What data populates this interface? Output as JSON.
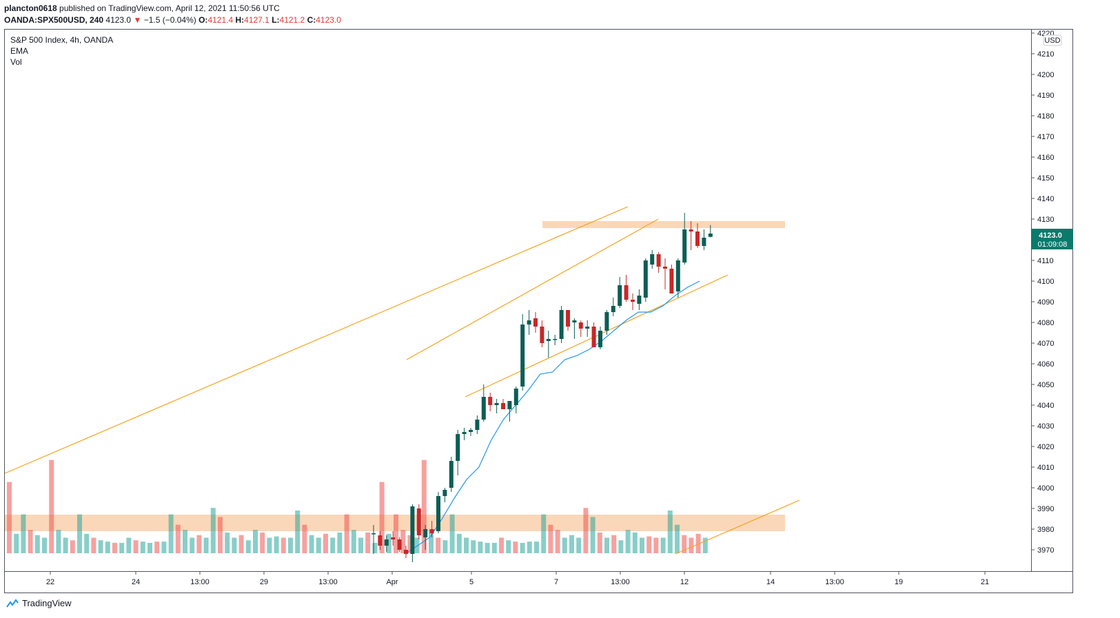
{
  "header": {
    "author": "plancton0618",
    "published_text": "published on TradingView.com, April 12, 2021 11:50:56 UTC",
    "symbol": "OANDA:SPX500USD, 240",
    "last": "4123.0",
    "change_arrow": "▼",
    "change": "−1.5 (−0.04%)",
    "o_label": "O:",
    "o_value": "4121.4",
    "h_label": "H:",
    "h_value": "4127.1",
    "l_label": "L:",
    "l_value": "4121.2",
    "c_label": "C:",
    "c_value": "4123.0"
  },
  "legend": {
    "title": "S&P 500 Index, 4h, OANDA",
    "ema": "EMA",
    "vol": "Vol"
  },
  "price_axis": {
    "currency": "USD",
    "ticks": [
      "4220",
      "4210",
      "4200",
      "4190",
      "4180",
      "4170",
      "4160",
      "4150",
      "4140",
      "4130",
      "4120",
      "4110",
      "4100",
      "4090",
      "4080",
      "4070",
      "4060",
      "4050",
      "4040",
      "4030",
      "4020",
      "4010",
      "4000",
      "3990",
      "3980",
      "3970"
    ],
    "last_price": "4123.0",
    "countdown": "01:09:08"
  },
  "time_axis": {
    "labels": [
      "22",
      "24",
      "13:00",
      "29",
      "13:00",
      "Apr",
      "5",
      "7",
      "13:00",
      "12",
      "14",
      "13:00",
      "19",
      "21"
    ]
  },
  "footer": {
    "brand": "TradingView"
  },
  "colors": {
    "up": "#26a69a",
    "down": "#ef5350",
    "candle_up": "#0b5e55",
    "candle_down": "#c62828",
    "ema": "#2196f3",
    "channel": "#f7a21b",
    "zone": "#f8c9a0",
    "badge": "#0b7a6c"
  },
  "chart_data": {
    "type": "candlestick",
    "symbol": "OANDA:SPX500USD",
    "timeframe": "4h",
    "ylim": [
      3968,
      4222
    ],
    "candles": [
      [
        3978,
        3982,
        3968,
        3978
      ],
      [
        3977,
        3979,
        3970,
        3972
      ],
      [
        3972,
        3977,
        3969,
        3975
      ],
      [
        3976,
        3979,
        3972,
        3975
      ],
      [
        3975,
        3976,
        3969,
        3970
      ],
      [
        3970,
        3972,
        3966,
        3968
      ],
      [
        3968,
        3992,
        3964,
        3991
      ],
      [
        3990,
        3992,
        3975,
        3977
      ],
      [
        3976,
        3982,
        3970,
        3980
      ],
      [
        3980,
        3984,
        3976,
        3978
      ],
      [
        3979,
        3998,
        3978,
        3996
      ],
      [
        3996,
        4000,
        3993,
        3999
      ],
      [
        4000,
        4015,
        3998,
        4013
      ],
      [
        4013,
        4028,
        4006,
        4026
      ],
      [
        4026,
        4029,
        4023,
        4027
      ],
      [
        4027,
        4029,
        4025,
        4028
      ],
      [
        4028,
        4035,
        4026,
        4033
      ],
      [
        4033,
        4050,
        4032,
        4044
      ],
      [
        4044,
        4046,
        4037,
        4040
      ],
      [
        4040,
        4043,
        4036,
        4041
      ],
      [
        4041,
        4043,
        4038,
        4038
      ],
      [
        4038,
        4041,
        4032,
        4042
      ],
      [
        4040,
        4049,
        4036,
        4048
      ],
      [
        4049,
        4084,
        4047,
        4079
      ],
      [
        4079,
        4086,
        4074,
        4081
      ],
      [
        4082,
        4085,
        4075,
        4078
      ],
      [
        4078,
        4081,
        4068,
        4070
      ],
      [
        4071,
        4076,
        4063,
        4072
      ],
      [
        4072,
        4074,
        4069,
        4072
      ],
      [
        4072,
        4088,
        4070,
        4086
      ],
      [
        4086,
        4086,
        4076,
        4078
      ],
      [
        4080,
        4082,
        4072,
        4081
      ],
      [
        4080,
        4081,
        4073,
        4077
      ],
      [
        4077,
        4081,
        4073,
        4078
      ],
      [
        4078,
        4080,
        4068,
        4068
      ],
      [
        4068,
        4078,
        4067,
        4076
      ],
      [
        4076,
        4086,
        4074,
        4085
      ],
      [
        4085,
        4092,
        4083,
        4088
      ],
      [
        4088,
        4102,
        4087,
        4098
      ],
      [
        4098,
        4103,
        4090,
        4091
      ],
      [
        4091,
        4094,
        4086,
        4090
      ],
      [
        4089,
        4096,
        4086,
        4093
      ],
      [
        4092,
        4111,
        4090,
        4110
      ],
      [
        4108,
        4115,
        4106,
        4113
      ],
      [
        4113,
        4114,
        4104,
        4107
      ],
      [
        4107,
        4111,
        4096,
        4106
      ],
      [
        4106,
        4108,
        4094,
        4094
      ],
      [
        4095,
        4111,
        4092,
        4110
      ],
      [
        4109,
        4133,
        4108,
        4125
      ],
      [
        4125,
        4129,
        4115,
        4124
      ],
      [
        4124,
        4128,
        4116,
        4117
      ],
      [
        4117,
        4125,
        4115,
        4121
      ],
      [
        4121.4,
        4127.1,
        4121.2,
        4123.0
      ]
    ],
    "volume_relative": [
      0.55,
      0.15,
      0.3,
      0.18,
      0.14,
      0.12,
      0.72,
      0.18,
      0.12,
      0.1,
      0.3,
      0.15,
      0.12,
      0.1,
      0.09,
      0.08,
      0.08,
      0.12,
      0.1,
      0.09,
      0.08,
      0.09,
      0.09,
      0.3,
      0.22,
      0.18,
      0.12,
      0.14,
      0.12,
      0.35,
      0.28,
      0.16,
      0.12,
      0.14,
      0.1,
      0.18,
      0.16,
      0.12,
      0.13,
      0.12,
      0.12,
      0.33,
      0.22,
      0.14,
      0.12,
      0.15,
      0.12,
      0.16,
      0.3,
      0.18,
      0.12,
      0.16,
      0.08
    ],
    "ema": [
      [
        3968,
        3968
      ],
      [
        3972,
        3972
      ],
      [
        3976,
        3976
      ],
      [
        3985,
        3985
      ],
      [
        3995,
        3995
      ],
      [
        4004,
        4004
      ],
      [
        4010,
        4010
      ],
      [
        4023,
        4023
      ],
      [
        4033,
        4033
      ],
      [
        4040,
        4040
      ],
      [
        4047,
        4047
      ],
      [
        4055,
        4055
      ],
      [
        4056,
        4056
      ],
      [
        4062,
        4062
      ],
      [
        4064,
        4064
      ],
      [
        4067,
        4067
      ],
      [
        4071,
        4071
      ],
      [
        4076,
        4076
      ],
      [
        4081,
        4081
      ],
      [
        4085,
        4085
      ],
      [
        4085,
        4085
      ],
      [
        4088,
        4088
      ],
      [
        4093,
        4093
      ],
      [
        4097,
        4097
      ],
      [
        4100,
        4100
      ]
    ],
    "channel_lines": [
      {
        "from": [
          0,
          4007
        ],
        "to": [
          1,
          4136
        ]
      },
      {
        "from": [
          2,
          4062
        ],
        "to": [
          3,
          4130
        ]
      },
      {
        "from": [
          4,
          4044
        ],
        "to": [
          5,
          4103
        ]
      },
      {
        "from": [
          6,
          3968
        ],
        "to": [
          7,
          3994
        ]
      }
    ],
    "zones": [
      {
        "from": 4126,
        "to": 4129
      },
      {
        "from": 3979,
        "to": 3987
      }
    ]
  }
}
